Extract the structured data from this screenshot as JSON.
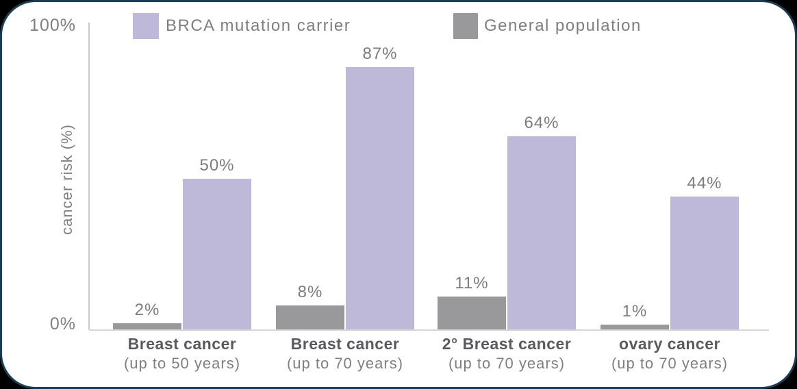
{
  "chart_data": {
    "type": "bar",
    "title": "",
    "xlabel": "",
    "ylabel": "cancer risk (%)",
    "ylim": [
      0,
      100
    ],
    "y_tick_labels": [
      "100%",
      "0%"
    ],
    "grid": false,
    "legend_position": "top",
    "legend": [
      {
        "label": "BRCA mutation carrier",
        "color": "#beb8d9"
      },
      {
        "label": "General population",
        "color": "#99989b"
      }
    ],
    "categories": [
      {
        "line1": "Breast cancer",
        "line2": "(up to 50 years)"
      },
      {
        "line1": "Breast cancer",
        "line2": "(up to 70 years)"
      },
      {
        "line1": "2° Breast cancer",
        "line2": "(up to 70 years)"
      },
      {
        "line1": "ovary cancer",
        "line2": "(up to 70 years)"
      }
    ],
    "series": [
      {
        "name": "General population",
        "color": "#99989b",
        "values": [
          2,
          8,
          11,
          1
        ],
        "data_labels": [
          "2%",
          "8%",
          "11%",
          "1%"
        ]
      },
      {
        "name": "BRCA mutation carrier",
        "color": "#beb8d9",
        "values": [
          50,
          87,
          64,
          44
        ],
        "data_labels": [
          "50%",
          "87%",
          "64%",
          "44%"
        ]
      }
    ]
  },
  "frame": {
    "background_color": "#000000",
    "panel_color": "#ffffff",
    "border_color": "#1a3e56"
  }
}
